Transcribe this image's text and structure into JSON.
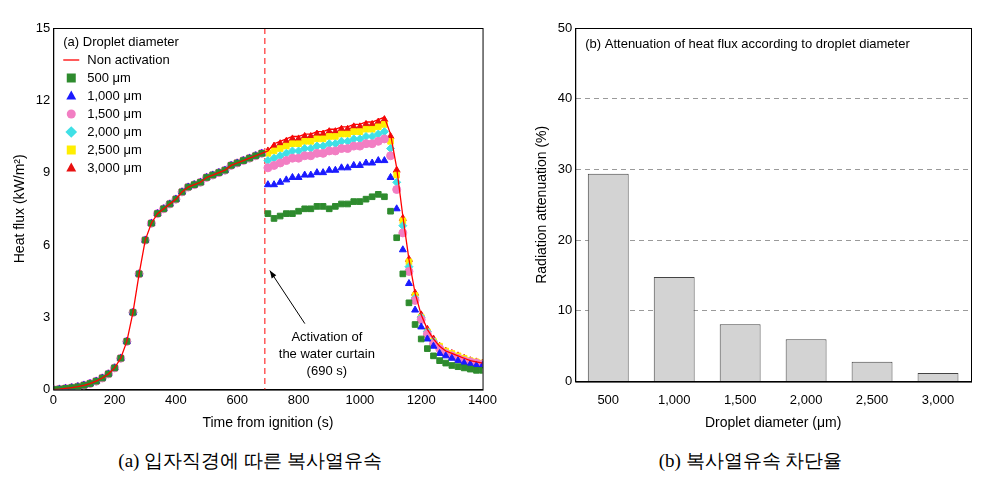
{
  "chart_data": [
    {
      "type": "scatter",
      "title": "(a) Droplet diameter",
      "caption": "(a) 입자직경에 따른 복사열유속",
      "x_label": "Time from ignition (s)",
      "y_label": "Heat flux (kW/m²)",
      "xlim": [
        0,
        1400
      ],
      "xticks": [
        0,
        200,
        400,
        600,
        800,
        1000,
        1200,
        1400
      ],
      "ylim": [
        0,
        15
      ],
      "yticks": [
        0,
        3,
        6,
        9,
        12,
        15
      ],
      "grid": false,
      "legend": "upper left",
      "annotations": [
        {
          "x": 690,
          "lines": [
            "Activation of",
            "the water curtain",
            "(690 s)"
          ]
        }
      ],
      "x": [
        0,
        20,
        40,
        60,
        80,
        100,
        120,
        140,
        160,
        180,
        200,
        220,
        240,
        260,
        280,
        300,
        320,
        340,
        360,
        380,
        400,
        420,
        440,
        460,
        480,
        500,
        520,
        540,
        560,
        580,
        600,
        620,
        640,
        660,
        680,
        700,
        720,
        740,
        760,
        780,
        800,
        820,
        840,
        860,
        880,
        900,
        920,
        940,
        960,
        980,
        1000,
        1020,
        1040,
        1060,
        1080,
        1100,
        1120,
        1140,
        1160,
        1180,
        1200,
        1220,
        1240,
        1260,
        1280,
        1300,
        1320,
        1340,
        1360,
        1380,
        1400
      ],
      "series": [
        {
          "name": "Non activation",
          "color": "#ff0000",
          "marker": "none",
          "line_style": "solid",
          "values": [
            0,
            0.02,
            0.05,
            0.08,
            0.12,
            0.18,
            0.25,
            0.35,
            0.48,
            0.65,
            0.9,
            1.3,
            2.0,
            3.2,
            4.8,
            6.2,
            6.9,
            7.3,
            7.5,
            7.7,
            7.9,
            8.2,
            8.4,
            8.5,
            8.6,
            8.8,
            8.9,
            9.0,
            9.1,
            9.3,
            9.4,
            9.5,
            9.6,
            9.7,
            9.8,
            9.9,
            10.2,
            10.3,
            10.4,
            10.5,
            10.5,
            10.6,
            10.6,
            10.7,
            10.7,
            10.8,
            10.8,
            10.9,
            10.9,
            11.0,
            11.0,
            11.1,
            11.1,
            11.2,
            11.3,
            10.6,
            9.2,
            7.2,
            5.4,
            4.0,
            3.1,
            2.5,
            2.1,
            1.8,
            1.6,
            1.5,
            1.4,
            1.3,
            1.2,
            1.15,
            1.1
          ]
        },
        {
          "name": "500 μm",
          "color": "#2e8b2e",
          "marker": "square",
          "line_style": "none",
          "values": [
            0,
            0.02,
            0.05,
            0.08,
            0.12,
            0.18,
            0.25,
            0.35,
            0.48,
            0.65,
            0.9,
            1.3,
            2.0,
            3.2,
            4.8,
            6.2,
            6.9,
            7.3,
            7.5,
            7.7,
            7.9,
            8.2,
            8.4,
            8.5,
            8.6,
            8.8,
            8.9,
            9.0,
            9.1,
            9.3,
            9.4,
            9.5,
            9.6,
            9.7,
            9.8,
            7.3,
            7.1,
            7.2,
            7.3,
            7.3,
            7.4,
            7.5,
            7.5,
            7.6,
            7.6,
            7.5,
            7.6,
            7.7,
            7.7,
            7.8,
            7.8,
            7.9,
            8.0,
            8.1,
            8.0,
            7.4,
            6.3,
            4.8,
            3.6,
            2.7,
            2.1,
            1.7,
            1.4,
            1.2,
            1.1,
            1.0,
            0.95,
            0.9,
            0.85,
            0.8,
            0.8
          ]
        },
        {
          "name": "1,000 μm",
          "color": "#1a1aff",
          "marker": "triangle",
          "line_style": "none",
          "values": [
            0,
            0.02,
            0.05,
            0.08,
            0.12,
            0.18,
            0.25,
            0.35,
            0.48,
            0.65,
            0.9,
            1.3,
            2.0,
            3.2,
            4.8,
            6.2,
            6.9,
            7.3,
            7.5,
            7.7,
            7.9,
            8.2,
            8.4,
            8.5,
            8.6,
            8.8,
            8.9,
            9.0,
            9.1,
            9.3,
            9.4,
            9.5,
            9.6,
            9.7,
            9.8,
            8.5,
            8.5,
            8.6,
            8.7,
            8.8,
            8.8,
            8.9,
            8.9,
            9.0,
            9.0,
            9.1,
            9.1,
            9.2,
            9.2,
            9.3,
            9.3,
            9.4,
            9.4,
            9.5,
            9.5,
            8.8,
            7.5,
            5.8,
            4.4,
            3.3,
            2.6,
            2.1,
            1.8,
            1.5,
            1.4,
            1.3,
            1.2,
            1.1,
            1.05,
            1.0,
            1.0
          ]
        },
        {
          "name": "1,500 μm",
          "color": "#f27ec3",
          "marker": "circle",
          "line_style": "none",
          "values": [
            0,
            0.02,
            0.05,
            0.08,
            0.12,
            0.18,
            0.25,
            0.35,
            0.48,
            0.65,
            0.9,
            1.3,
            2.0,
            3.2,
            4.8,
            6.2,
            6.9,
            7.3,
            7.5,
            7.7,
            7.9,
            8.2,
            8.4,
            8.5,
            8.6,
            8.8,
            8.9,
            9.0,
            9.1,
            9.3,
            9.4,
            9.5,
            9.6,
            9.7,
            9.8,
            9.2,
            9.3,
            9.4,
            9.5,
            9.6,
            9.6,
            9.7,
            9.7,
            9.8,
            9.8,
            9.9,
            9.9,
            10.0,
            10.0,
            10.1,
            10.1,
            10.2,
            10.2,
            10.3,
            10.4,
            9.7,
            8.3,
            6.5,
            4.9,
            3.7,
            2.9,
            2.3,
            1.9,
            1.7,
            1.5,
            1.4,
            1.3,
            1.2,
            1.15,
            1.1,
            1.05
          ]
        },
        {
          "name": "2,000 μm",
          "color": "#3fe0e6",
          "marker": "diamond",
          "line_style": "none",
          "values": [
            0,
            0.02,
            0.05,
            0.08,
            0.12,
            0.18,
            0.25,
            0.35,
            0.48,
            0.65,
            0.9,
            1.3,
            2.0,
            3.2,
            4.8,
            6.2,
            6.9,
            7.3,
            7.5,
            7.7,
            7.9,
            8.2,
            8.4,
            8.5,
            8.6,
            8.8,
            8.9,
            9.0,
            9.1,
            9.3,
            9.4,
            9.5,
            9.6,
            9.7,
            9.8,
            9.5,
            9.6,
            9.7,
            9.8,
            9.9,
            9.9,
            10.0,
            10.0,
            10.1,
            10.1,
            10.2,
            10.2,
            10.3,
            10.3,
            10.4,
            10.4,
            10.5,
            10.5,
            10.6,
            10.7,
            10.0,
            8.6,
            6.8,
            5.1,
            3.8,
            3.0,
            2.4,
            2.0,
            1.7,
            1.5,
            1.4,
            1.3,
            1.2,
            1.15,
            1.1,
            1.05
          ]
        },
        {
          "name": "2,500 μm",
          "color": "#ffee00",
          "marker": "square",
          "line_style": "none",
          "values": [
            0,
            0.02,
            0.05,
            0.08,
            0.12,
            0.18,
            0.25,
            0.35,
            0.48,
            0.65,
            0.9,
            1.3,
            2.0,
            3.2,
            4.8,
            6.2,
            6.9,
            7.3,
            7.5,
            7.7,
            7.9,
            8.2,
            8.4,
            8.5,
            8.6,
            8.8,
            8.9,
            9.0,
            9.1,
            9.3,
            9.4,
            9.5,
            9.6,
            9.7,
            9.8,
            9.8,
            9.9,
            10.0,
            10.1,
            10.2,
            10.2,
            10.3,
            10.3,
            10.4,
            10.4,
            10.5,
            10.5,
            10.6,
            10.6,
            10.7,
            10.7,
            10.8,
            10.8,
            10.9,
            11.0,
            10.3,
            8.9,
            7.0,
            5.3,
            3.9,
            3.0,
            2.4,
            2.0,
            1.8,
            1.6,
            1.5,
            1.4,
            1.3,
            1.2,
            1.15,
            1.1
          ]
        },
        {
          "name": "3,000 μm",
          "color": "#e81010",
          "marker": "triangle",
          "line_style": "none",
          "values": [
            0,
            0.02,
            0.05,
            0.08,
            0.12,
            0.18,
            0.25,
            0.35,
            0.48,
            0.65,
            0.9,
            1.3,
            2.0,
            3.2,
            4.8,
            6.2,
            6.9,
            7.3,
            7.5,
            7.7,
            7.9,
            8.2,
            8.4,
            8.5,
            8.6,
            8.8,
            8.9,
            9.0,
            9.1,
            9.3,
            9.4,
            9.5,
            9.6,
            9.7,
            9.8,
            9.9,
            10.1,
            10.2,
            10.3,
            10.4,
            10.4,
            10.5,
            10.5,
            10.6,
            10.6,
            10.7,
            10.7,
            10.8,
            10.8,
            10.9,
            10.9,
            11.0,
            11.0,
            11.1,
            11.2,
            10.5,
            9.1,
            7.1,
            5.4,
            4.0,
            3.1,
            2.5,
            2.1,
            1.8,
            1.6,
            1.5,
            1.4,
            1.3,
            1.2,
            1.15,
            1.1
          ]
        }
      ]
    },
    {
      "type": "bar",
      "title": "(b) Attenuation of heat flux according to droplet diameter",
      "caption": "(b) 복사열유속 차단율",
      "x_label": "Droplet diameter (μm)",
      "y_label": "Radiation attenuation (%)",
      "categories": [
        "500",
        "1,000",
        "1,500",
        "2,000",
        "2,500",
        "3,000"
      ],
      "values": [
        29.4,
        14.8,
        8.1,
        6.0,
        2.8,
        1.2
      ],
      "color": "#d3d3d3",
      "ylim": [
        0,
        50
      ],
      "yticks": [
        0,
        10,
        20,
        30,
        40,
        50
      ],
      "grid": true
    }
  ]
}
